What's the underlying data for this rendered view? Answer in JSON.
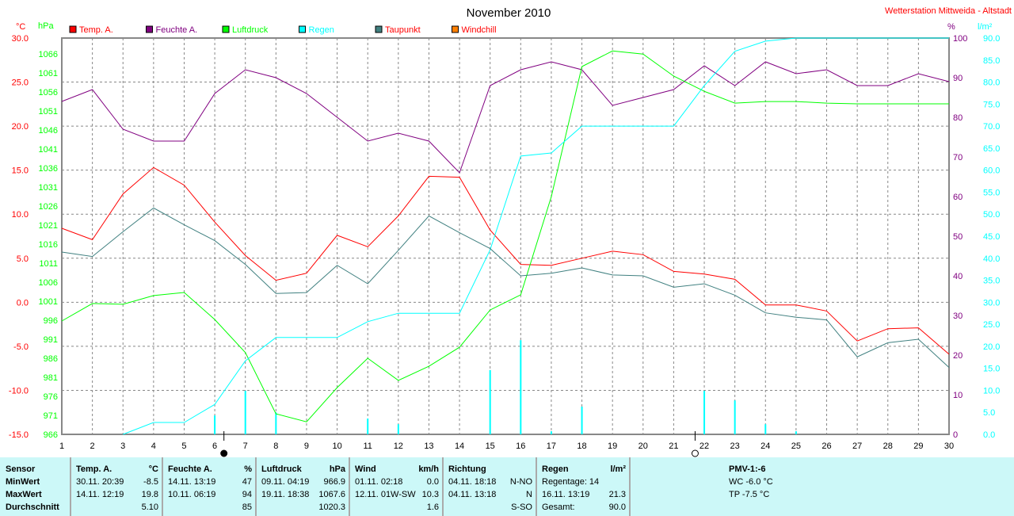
{
  "header": {
    "title": "November 2010",
    "station": "Wetterstation Mittweida - Altstadt"
  },
  "axes": {
    "temp_unit": "°C",
    "press_unit": "hPa",
    "hum_unit": "%",
    "rain_unit": "l/m²"
  },
  "legend": [
    {
      "label": "Temp. A.",
      "color": "#ff0000",
      "text_color": "#ff0000"
    },
    {
      "label": "Feuchte A.",
      "color": "#800080",
      "text_color": "#800080"
    },
    {
      "label": "Luftdruck",
      "color": "#00ff00",
      "text_color": "#00ff00"
    },
    {
      "label": "Regen",
      "color": "#00ffff",
      "text_color": "#00ffff"
    },
    {
      "label": "Taupunkt",
      "color": "#408080",
      "text_color": "#ff0000"
    },
    {
      "label": "Windchill",
      "color": "#ff8000",
      "text_color": "#ff0000"
    }
  ],
  "chart_data": {
    "type": "line",
    "title": "November 2010",
    "x": [
      1,
      2,
      3,
      4,
      5,
      6,
      7,
      8,
      9,
      10,
      11,
      12,
      13,
      14,
      15,
      16,
      17,
      18,
      19,
      20,
      21,
      22,
      23,
      24,
      25,
      26,
      27,
      28,
      29,
      30
    ],
    "temp_ylim": [
      -15,
      30
    ],
    "press_ylim": [
      966,
      1070.2
    ],
    "hum_ylim": [
      0,
      100
    ],
    "rain_ylim": [
      0,
      90
    ],
    "temp_ticks": [
      "30.0",
      "25.0",
      "20.0",
      "15.0",
      "10.0",
      "5.0",
      "0.0",
      "-5.0",
      "-10.0",
      "-15.0"
    ],
    "press_ticks": [
      "1066",
      "1061",
      "1056",
      "1051",
      "1046",
      "1041",
      "1036",
      "1031",
      "1026",
      "1021",
      "1016",
      "1011",
      "1006",
      "1001",
      "996",
      "991",
      "986",
      "981",
      "976",
      "971",
      "966"
    ],
    "hum_ticks": [
      "100",
      "90",
      "80",
      "70",
      "60",
      "50",
      "40",
      "30",
      "20",
      "10",
      "0"
    ],
    "rain_ticks": [
      "90.0",
      "85.0",
      "80.0",
      "75.0",
      "70.0",
      "65.0",
      "60.0",
      "55.0",
      "50.0",
      "45.0",
      "40.0",
      "35.0",
      "30.0",
      "25.0",
      "20.0",
      "15.0",
      "10.0",
      "5.0",
      "0.0"
    ],
    "series": [
      {
        "name": "Temp. A.",
        "axis": "temp",
        "color": "#ff0000",
        "values": [
          8.4,
          7.1,
          12.3,
          15.3,
          13.3,
          9.1,
          5.3,
          2.5,
          3.3,
          7.6,
          6.3,
          9.8,
          14.3,
          14.2,
          8.2,
          4.3,
          4.2,
          5.0,
          5.8,
          5.4,
          3.5,
          3.2,
          2.6,
          -0.3,
          -0.3,
          -1.0,
          -4.4,
          -3.0,
          -2.9,
          -5.9
        ]
      },
      {
        "name": "Feuchte A.",
        "axis": "hum",
        "color": "#800080",
        "values": [
          84,
          87,
          77,
          74,
          74,
          86,
          92,
          90,
          86,
          80,
          74,
          76,
          74,
          66,
          88,
          92,
          94,
          92,
          83,
          85,
          87,
          93,
          88,
          94,
          91,
          92,
          88,
          88,
          91,
          89
        ]
      },
      {
        "name": "Luftdruck",
        "axis": "press",
        "color": "#00ff00",
        "values": [
          995.8,
          1000.4,
          1000.2,
          1002.5,
          1003.3,
          996.2,
          987.5,
          971.4,
          969.3,
          978.3,
          986.0,
          980.2,
          983.9,
          988.9,
          998.7,
          1002.7,
          1028.5,
          1062.7,
          1066.8,
          1066.0,
          1060.2,
          1056.2,
          1053.1,
          1053.5,
          1053.5,
          1053.1,
          1052.9,
          1052.9,
          1052.9,
          1052.9
        ]
      },
      {
        "name": "Regen",
        "axis": "rain",
        "color": "#00ffff",
        "values": [
          null,
          null,
          0,
          2.7,
          2.7,
          6.8,
          16.7,
          22.0,
          22.0,
          22.0,
          25.6,
          27.5,
          27.5,
          27.5,
          41.9,
          63.2,
          63.9,
          70.0,
          70.0,
          70.0,
          70.0,
          79.2,
          87.0,
          89.3,
          90.0,
          90.0,
          90.0,
          90.0,
          90.0,
          90.0
        ]
      },
      {
        "name": "Taupunkt",
        "axis": "temp",
        "color": "#408080",
        "values": [
          5.7,
          5.2,
          8.0,
          10.7,
          8.8,
          7.0,
          4.3,
          1.0,
          1.1,
          4.2,
          2.1,
          5.9,
          9.8,
          7.9,
          6.1,
          3.0,
          3.3,
          3.9,
          3.1,
          3.0,
          1.7,
          2.1,
          0.8,
          -1.2,
          -1.7,
          -2.0,
          -6.2,
          -4.6,
          -4.2,
          -7.4
        ]
      }
    ],
    "daily_rain": {
      "days": [
        6,
        7,
        8,
        11,
        12,
        15,
        16,
        17,
        18,
        22,
        23,
        24,
        25
      ],
      "values": [
        4.3,
        9.9,
        5.0,
        3.6,
        2.3,
        14.6,
        21.4,
        0.7,
        6.3,
        9.9,
        7.7,
        2.3,
        0.7
      ]
    },
    "moon_phases": [
      {
        "day": 6.3,
        "phase": "full"
      },
      {
        "day": 21.7,
        "phase": "new"
      }
    ]
  },
  "table": {
    "sensor": {
      "h": "Sensor",
      "r1": "MinWert",
      "r2": "MaxWert",
      "r3": "Durchschnitt"
    },
    "temp": {
      "h": "Temp. A.",
      "u": "°C",
      "min_t": "30.11.  20:39",
      "min": "-8.5",
      "max_t": "14.11.  12:19",
      "max": "19.8",
      "avg": "5.10"
    },
    "hum": {
      "h": "Feuchte A.",
      "u": "%",
      "min_t": "14.11.  13:19",
      "min": "47",
      "max_t": "10.11.  06:19",
      "max": "94",
      "avg": "85"
    },
    "press": {
      "h": "Luftdruck",
      "u": "hPa",
      "min_t": "09.11.  04:19",
      "min": "966.9",
      "max_t": "19.11.  18:38",
      "max": "1067.6",
      "avg": "1020.3"
    },
    "wind": {
      "h": "Wind",
      "u": "km/h",
      "min_t": "01.11.  02:18",
      "min": "0.0",
      "max_t": "12.11.  01W-SW",
      "max": "10.3",
      "avg": "1.6"
    },
    "dir": {
      "h": "Richtung",
      "min_t": "04.11.  18:18",
      "min": "N-NO",
      "max_t": "04.11.  13:18",
      "max": "N",
      "avg": "S-SO"
    },
    "rain": {
      "h": "Regen",
      "u": "l/m²",
      "days": "Regentage: 14",
      "max_t": "16.11.  13:19",
      "max": "21.3",
      "total_l": "Gesamt:",
      "total": "90.0"
    },
    "pmv": {
      "h": "PMV-1:-6",
      "wc": "WC -6.0 °C",
      "tp": "TP -7.5 °C"
    }
  }
}
